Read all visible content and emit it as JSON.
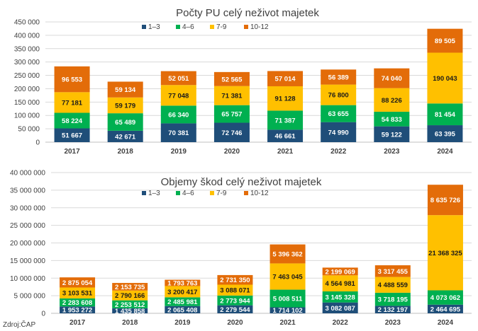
{
  "source": "Zdroj:ČAP",
  "colors": {
    "s1": "#1f4e79",
    "s2": "#00b050",
    "s3": "#ffc000",
    "s4": "#e36c09",
    "grid": "#d9d9d9",
    "text": "#404040"
  },
  "chart_data": [
    {
      "type": "bar",
      "stacked": true,
      "title": "Počty PU celý neživot majetek",
      "categories": [
        "2017",
        "2018",
        "2019",
        "2020",
        "2021",
        "2022",
        "2023",
        "2024"
      ],
      "ylim": [
        0,
        450000
      ],
      "yticks": [
        0,
        50000,
        100000,
        150000,
        200000,
        250000,
        300000,
        350000,
        400000,
        450000
      ],
      "ytick_labels": [
        "0",
        "50 000",
        "100 000",
        "150 000",
        "200 000",
        "250 000",
        "300 000",
        "350 000",
        "400 000",
        "450 000"
      ],
      "grid": true,
      "legend_position": "top",
      "series": [
        {
          "name": "1–3",
          "values": [
            51667,
            42671,
            70381,
            72746,
            46661,
            74990,
            59122,
            63395
          ],
          "labels": [
            "51 667",
            "42 671",
            "70 381",
            "72 746",
            "46 661",
            "74 990",
            "59 122",
            "63 395"
          ]
        },
        {
          "name": "4–6",
          "values": [
            58224,
            65489,
            66340,
            65757,
            71387,
            63655,
            54833,
            81454
          ],
          "labels": [
            "58 224",
            "65 489",
            "66 340",
            "65 757",
            "71 387",
            "63 655",
            "54 833",
            "81 454"
          ]
        },
        {
          "name": "7-9",
          "values": [
            77181,
            59179,
            77048,
            71381,
            91128,
            76800,
            88226,
            190043
          ],
          "labels": [
            "77 181",
            "59 179",
            "77 048",
            "71 381",
            "91 128",
            "76 800",
            "88 226",
            "190 043"
          ]
        },
        {
          "name": "10-12",
          "values": [
            96553,
            59134,
            52051,
            52565,
            57014,
            56389,
            74040,
            89505
          ],
          "labels": [
            "96 553",
            "59 134",
            "52 051",
            "52 565",
            "57 014",
            "56 389",
            "74 040",
            "89 505"
          ]
        }
      ]
    },
    {
      "type": "bar",
      "stacked": true,
      "title": "Objemy škod celý neživot majetek",
      "categories": [
        "2017",
        "2018",
        "2019",
        "2020",
        "2021",
        "2022",
        "2023",
        "2024"
      ],
      "ylim": [
        0,
        40000000
      ],
      "yticks": [
        0,
        5000000,
        10000000,
        15000000,
        20000000,
        25000000,
        30000000,
        35000000,
        40000000
      ],
      "ytick_labels": [
        "0",
        "5 000 000",
        "10 000 000",
        "15 000 000",
        "20 000 000",
        "25 000 000",
        "30 000 000",
        "35 000 000",
        "40 000 000"
      ],
      "grid": true,
      "legend_position": "top",
      "series": [
        {
          "name": "1–3",
          "values": [
            1953272,
            1435858,
            2065408,
            2279544,
            1714102,
            3082087,
            2132197,
            2464695
          ],
          "labels": [
            "1 953 272",
            "1 435 858",
            "2 065 408",
            "2 279 544",
            "1 714 102",
            "3 082 087",
            "2 132 197",
            "2 464 695"
          ]
        },
        {
          "name": "4–6",
          "values": [
            2283608,
            2253512,
            2485981,
            2773944,
            5008511,
            3145328,
            3718195,
            4073062
          ],
          "labels": [
            "2 283 608",
            "2 253 512",
            "2 485 981",
            "2 773 944",
            "5 008 511",
            "3 145 328",
            "3 718 195",
            "4 073 062"
          ]
        },
        {
          "name": "7-9",
          "values": [
            3103531,
            2790166,
            3200417,
            3088071,
            7463045,
            4564981,
            4488559,
            21368325
          ],
          "labels": [
            "3 103 531",
            "2 790 166",
            "3 200 417",
            "3 088 071",
            "7 463 045",
            "4 564 981",
            "4 488 559",
            "21 368 325"
          ]
        },
        {
          "name": "10-12",
          "values": [
            2875054,
            2153735,
            1793763,
            2731350,
            5396362,
            2199069,
            3317455,
            8635726
          ],
          "labels": [
            "2 875 054",
            "2 153 735",
            "1 793 763",
            "2 731 350",
            "5 396 362",
            "2 199 069",
            "3 317 455",
            "8 635 726"
          ]
        }
      ]
    }
  ]
}
